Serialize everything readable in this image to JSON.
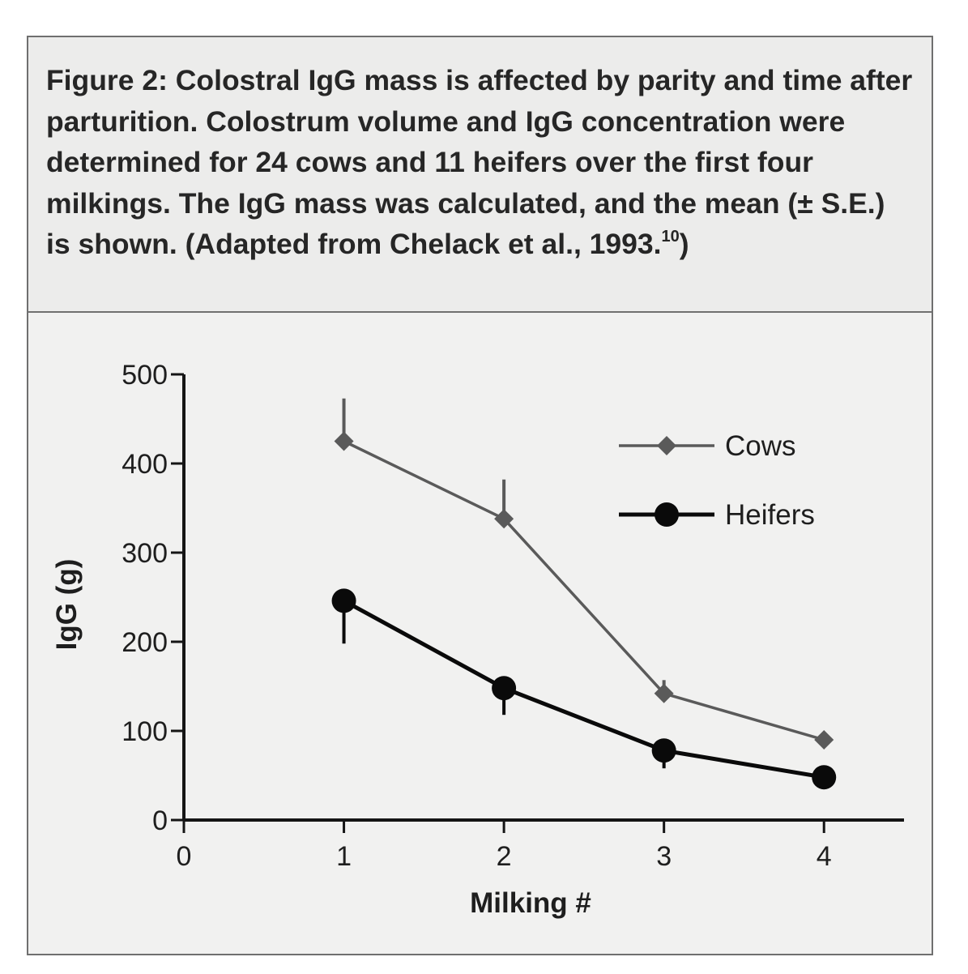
{
  "figure": {
    "label": "Figure 2:",
    "caption_text": "Colostral IgG mass is affected by parity and time after parturition. Colostrum volume and IgG concentration were determined for 24 cows and 11 heifers over the first four milkings. The IgG mass was calculated, and the mean (± S.E.) is shown. (Adapted from Chelack et al., 1993.",
    "citation_number": "10",
    "caption_close": ")"
  },
  "chart_data": {
    "type": "line",
    "title": "",
    "xlabel": "Milking #",
    "ylabel": "IgG (g)",
    "xlim": [
      0,
      4.5
    ],
    "ylim": [
      0,
      500
    ],
    "x_ticks": [
      0,
      1,
      2,
      3,
      4
    ],
    "x_tick_labels": [
      "0",
      "1",
      "2",
      "3",
      "4"
    ],
    "y_ticks": [
      0,
      100,
      200,
      300,
      400,
      500
    ],
    "y_tick_labels": [
      "0",
      "100",
      "200",
      "300",
      "400",
      "500"
    ],
    "grid": false,
    "legend_position": "top-right",
    "series": [
      {
        "name": "Cows",
        "marker": "diamond",
        "color": "#5a5a5a",
        "x": [
          1,
          2,
          3,
          4
        ],
        "y": [
          425,
          338,
          142,
          90
        ],
        "se": [
          48,
          44,
          15,
          0
        ],
        "error_direction": "up"
      },
      {
        "name": "Heifers",
        "marker": "circle",
        "color": "#0a0a0a",
        "x": [
          1,
          2,
          3,
          4
        ],
        "y": [
          246,
          148,
          78,
          48
        ],
        "se": [
          48,
          30,
          20,
          0
        ],
        "error_direction": "down"
      }
    ]
  }
}
